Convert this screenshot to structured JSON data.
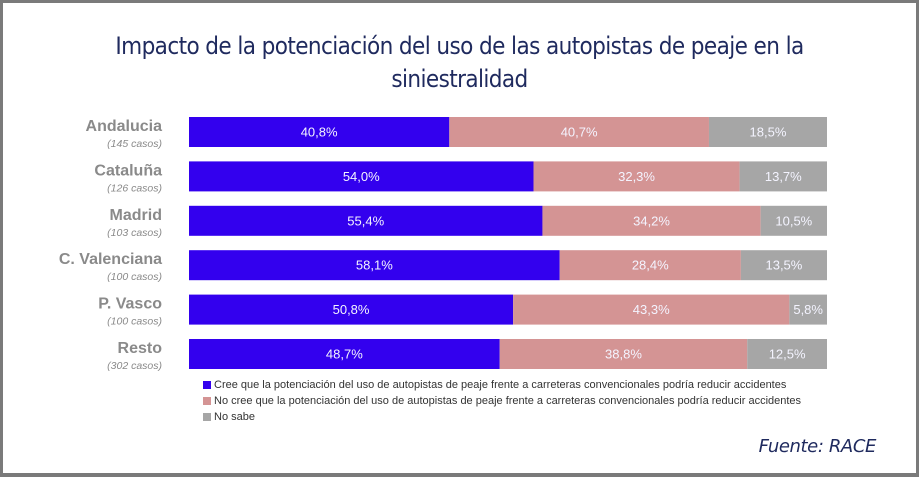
{
  "chart_data": {
    "type": "bar",
    "orientation": "horizontal",
    "stacked": true,
    "title": "Impacto de la potenciación del uso de las autopistas de peaje en la siniestralidad",
    "title_lines": [
      "Impacto de la potenciación del uso de las autopistas de peaje en la",
      "siniestralidad"
    ],
    "xlabel": "",
    "ylabel": "",
    "xlim": [
      0,
      100
    ],
    "grid": false,
    "legend_position": "bottom",
    "categories": [
      "Andalucia",
      "Cataluña",
      "Madrid",
      "C. Valenciana",
      "P. Vasco",
      "Resto"
    ],
    "category_subtitles": [
      "(145 casos)",
      "(126 casos)",
      "(103 casos)",
      "(100 casos)",
      "(100 casos)",
      "(302 casos)"
    ],
    "series": [
      {
        "name": "Cree que la potenciación del uso de autopistas de peaje frente a carreteras convencionales podría reducir accidentes",
        "color": "#3300ee",
        "values": [
          40.8,
          54.0,
          55.4,
          58.1,
          50.8,
          48.7
        ],
        "labels": [
          "40,8%",
          "54,0%",
          "55,4%",
          "58,1%",
          "50,8%",
          "48,7%"
        ]
      },
      {
        "name": "No cree que la potenciación del uso de autopistas de peaje frente a carreteras convencionales podría reducir accidentes",
        "color": "#d49494",
        "values": [
          40.7,
          32.3,
          34.2,
          28.4,
          43.3,
          38.8
        ],
        "labels": [
          "40,7%",
          "32,3%",
          "34,2%",
          "28,4%",
          "43,3%",
          "38,8%"
        ]
      },
      {
        "name": "No sabe",
        "color": "#a6a6a6",
        "values": [
          18.5,
          13.7,
          10.5,
          13.5,
          5.8,
          12.5
        ],
        "labels": [
          "18,5%",
          "13,7%",
          "10,5%",
          "13,5%",
          "5,8%",
          "12,5%"
        ]
      }
    ]
  },
  "source": "Fuente: RACE"
}
